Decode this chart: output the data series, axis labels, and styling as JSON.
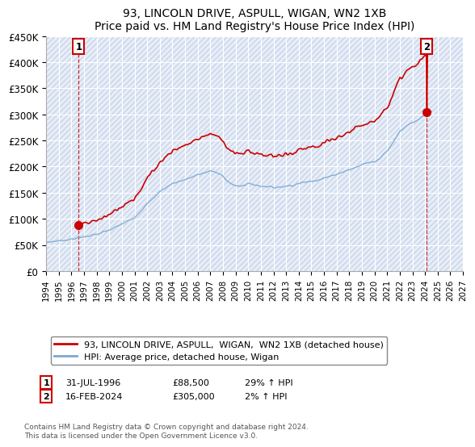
{
  "title": "93, LINCOLN DRIVE, ASPULL, WIGAN, WN2 1XB",
  "subtitle": "Price paid vs. HM Land Registry's House Price Index (HPI)",
  "ylim": [
    0,
    450000
  ],
  "yticks": [
    0,
    50000,
    100000,
    150000,
    200000,
    250000,
    300000,
    350000,
    400000,
    450000
  ],
  "ytick_labels": [
    "£0",
    "£50K",
    "£100K",
    "£150K",
    "£200K",
    "£250K",
    "£300K",
    "£350K",
    "£400K",
    "£450K"
  ],
  "sale1_date": 1996.58,
  "sale1_price": 88500,
  "sale2_date": 2024.12,
  "sale2_price": 305000,
  "legend_line1": "93, LINCOLN DRIVE, ASPULL,  WIGAN,  WN2 1XB (detached house)",
  "legend_line2": "HPI: Average price, detached house, Wigan",
  "sale1_annotation": "31-JUL-1996",
  "sale1_price_str": "£88,500",
  "sale1_hpi_str": "29% ↑ HPI",
  "sale2_annotation": "16-FEB-2024",
  "sale2_price_str": "£305,000",
  "sale2_hpi_str": "2% ↑ HPI",
  "footer": "Contains HM Land Registry data © Crown copyright and database right 2024.\nThis data is licensed under the Open Government Licence v3.0.",
  "plot_bg_color": "#e8eef8",
  "hatch_color": "#c8d4e8",
  "grid_color": "#ffffff",
  "sale_line_color": "#cc0000",
  "hpi_line_color": "#7aa8d2",
  "marker_box_color": "#cc0000",
  "xmin": 1994,
  "xmax": 2027,
  "xticks": [
    1994,
    1995,
    1996,
    1997,
    1998,
    1999,
    2000,
    2001,
    2002,
    2003,
    2004,
    2005,
    2006,
    2007,
    2008,
    2009,
    2010,
    2011,
    2012,
    2013,
    2014,
    2015,
    2016,
    2017,
    2018,
    2019,
    2020,
    2021,
    2022,
    2023,
    2024,
    2025,
    2026,
    2027
  ]
}
